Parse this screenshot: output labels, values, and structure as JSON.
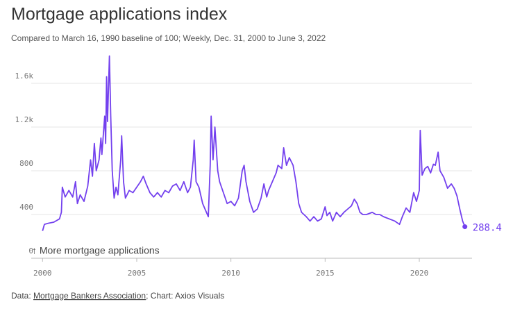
{
  "chart_data": {
    "type": "line",
    "title": "Mortgage applications index",
    "subtitle": "Compared to March 16, 1990 baseline of 100; Weekly, Dec. 31, 2000 to June 3, 2022",
    "annotation": "↑ More mortgage applications",
    "source": [
      "Data: ",
      "Mortgage Bankers Association",
      "; Chart: Axios Visuals"
    ],
    "xlim": [
      1999.4,
      2022.8
    ],
    "xticks": [
      2000,
      2005,
      2010,
      2015,
      2020
    ],
    "ylim": [
      0,
      1900
    ],
    "yticks": [
      0,
      400,
      800,
      {
        "value": 1200,
        "label": "1.2k"
      },
      {
        "value": 1600,
        "label": "1.6k"
      }
    ],
    "grid": true,
    "series": [
      {
        "name": "Mortgage applications index",
        "color": "#7340ee",
        "x": [
          2000.0,
          2000.1,
          2000.3,
          2000.6,
          2000.9,
          2001.0,
          2001.05,
          2001.2,
          2001.4,
          2001.6,
          2001.75,
          2001.85,
          2002.0,
          2002.2,
          2002.4,
          2002.55,
          2002.65,
          2002.75,
          2002.85,
          2003.0,
          2003.1,
          2003.15,
          2003.3,
          2003.35,
          2003.4,
          2003.45,
          2003.55,
          2003.62,
          2003.7,
          2003.8,
          2003.9,
          2004.0,
          2004.15,
          2004.2,
          2004.3,
          2004.4,
          2004.6,
          2004.8,
          2005.0,
          2005.2,
          2005.35,
          2005.5,
          2005.7,
          2005.9,
          2006.1,
          2006.3,
          2006.5,
          2006.7,
          2006.9,
          2007.1,
          2007.3,
          2007.5,
          2007.7,
          2007.85,
          2008.0,
          2008.05,
          2008.15,
          2008.3,
          2008.5,
          2008.7,
          2008.8,
          2008.9,
          2008.95,
          2009.05,
          2009.15,
          2009.3,
          2009.4,
          2009.6,
          2009.8,
          2010.0,
          2010.2,
          2010.4,
          2010.6,
          2010.7,
          2010.8,
          2011.0,
          2011.2,
          2011.4,
          2011.6,
          2011.75,
          2011.9,
          2012.0,
          2012.2,
          2012.4,
          2012.5,
          2012.7,
          2012.8,
          2012.95,
          2013.1,
          2013.3,
          2013.45,
          2013.6,
          2013.75,
          2014.0,
          2014.2,
          2014.4,
          2014.6,
          2014.8,
          2015.0,
          2015.1,
          2015.25,
          2015.4,
          2015.6,
          2015.8,
          2016.0,
          2016.2,
          2016.4,
          2016.55,
          2016.7,
          2016.85,
          2017.0,
          2017.2,
          2017.5,
          2017.7,
          2017.9,
          2018.1,
          2018.4,
          2018.7,
          2018.95,
          2019.1,
          2019.3,
          2019.5,
          2019.7,
          2019.85,
          2020.0,
          2020.05,
          2020.15,
          2020.3,
          2020.45,
          2020.6,
          2020.75,
          2020.85,
          2021.0,
          2021.1,
          2021.3,
          2021.5,
          2021.7,
          2021.85,
          2022.0,
          2022.15,
          2022.3,
          2022.42
        ],
        "values": [
          250,
          310,
          320,
          330,
          360,
          420,
          650,
          560,
          620,
          560,
          700,
          500,
          580,
          520,
          660,
          900,
          750,
          1050,
          800,
          900,
          1100,
          950,
          1300,
          1050,
          1660,
          1250,
          1850,
          1300,
          800,
          550,
          650,
          580,
          900,
          1120,
          700,
          550,
          620,
          600,
          650,
          700,
          750,
          680,
          600,
          560,
          600,
          560,
          620,
          600,
          660,
          680,
          620,
          700,
          600,
          650,
          900,
          1080,
          700,
          650,
          500,
          420,
          380,
          850,
          1300,
          900,
          1200,
          800,
          700,
          600,
          500,
          520,
          480,
          550,
          800,
          850,
          700,
          520,
          420,
          450,
          550,
          680,
          560,
          620,
          700,
          780,
          850,
          820,
          1010,
          850,
          920,
          850,
          700,
          500,
          420,
          380,
          340,
          380,
          340,
          360,
          470,
          390,
          420,
          340,
          420,
          380,
          420,
          450,
          480,
          540,
          500,
          420,
          400,
          400,
          420,
          400,
          400,
          380,
          360,
          340,
          310,
          380,
          460,
          420,
          600,
          520,
          620,
          1170,
          760,
          820,
          840,
          780,
          860,
          850,
          970,
          800,
          740,
          640,
          680,
          640,
          570,
          450,
          340,
          288.4
        ]
      }
    ]
  }
}
